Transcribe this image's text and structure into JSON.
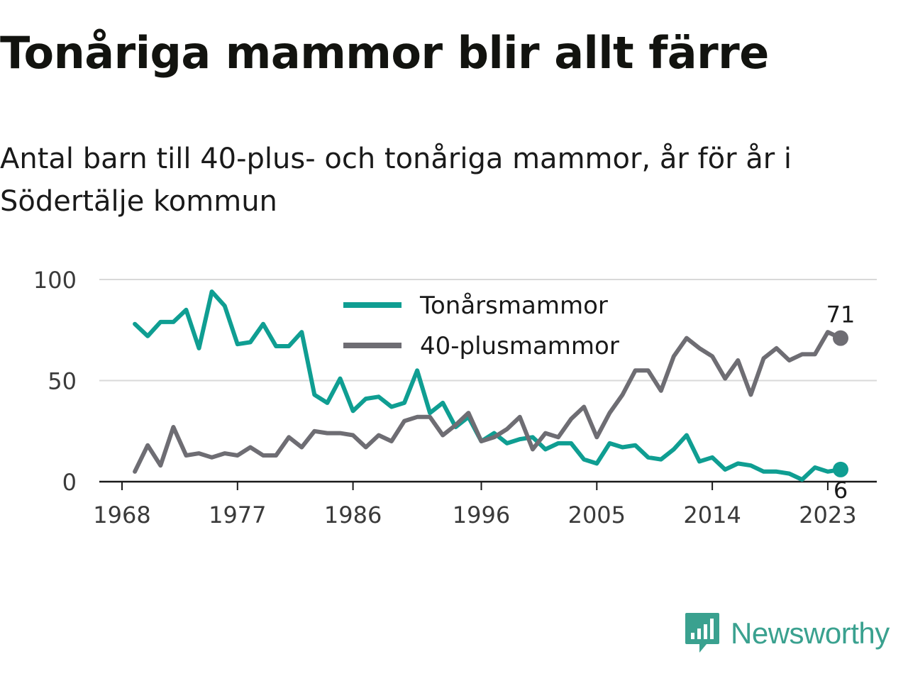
{
  "title": "Tonåriga mammor blir allt färre",
  "subtitle": "Antal barn till 40-plus- och tonåriga mammor, år för år i Södertälje kommun",
  "brand": {
    "name": "Newsworthy",
    "logo_icon": "bar-chart-speech-bubble-icon",
    "color": "#3aa18f"
  },
  "chart_data": {
    "type": "line",
    "x": [
      1969,
      1970,
      1971,
      1972,
      1973,
      1974,
      1975,
      1976,
      1977,
      1978,
      1979,
      1980,
      1981,
      1982,
      1983,
      1984,
      1985,
      1986,
      1987,
      1988,
      1989,
      1990,
      1991,
      1992,
      1993,
      1994,
      1995,
      1996,
      1997,
      1998,
      1999,
      2000,
      2001,
      2002,
      2003,
      2004,
      2005,
      2006,
      2007,
      2008,
      2009,
      2010,
      2011,
      2012,
      2013,
      2014,
      2015,
      2016,
      2017,
      2018,
      2019,
      2020,
      2021,
      2022,
      2023,
      2024
    ],
    "series": [
      {
        "name": "Tonårsmammor",
        "color": "#0f9e92",
        "values": [
          78,
          72,
          79,
          79,
          85,
          66,
          94,
          87,
          68,
          69,
          78,
          67,
          67,
          74,
          43,
          39,
          51,
          35,
          41,
          42,
          37,
          39,
          55,
          34,
          39,
          27,
          32,
          20,
          24,
          19,
          21,
          22,
          16,
          19,
          19,
          11,
          9,
          19,
          17,
          18,
          12,
          11,
          16,
          23,
          10,
          12,
          6,
          9,
          8,
          5,
          5,
          4,
          1,
          7,
          5,
          6
        ],
        "end_label": "6"
      },
      {
        "name": "40-plusmammor",
        "color": "#6e6d73",
        "values": [
          5,
          18,
          8,
          27,
          13,
          14,
          12,
          14,
          13,
          17,
          13,
          13,
          22,
          17,
          25,
          24,
          24,
          23,
          17,
          23,
          20,
          30,
          32,
          32,
          23,
          28,
          34,
          20,
          22,
          26,
          32,
          16,
          24,
          22,
          31,
          37,
          22,
          34,
          43,
          55,
          55,
          45,
          62,
          71,
          66,
          62,
          51,
          60,
          43,
          61,
          66,
          60,
          63,
          63,
          74,
          71
        ],
        "end_label": "71"
      }
    ],
    "x_ticks": [
      "1968",
      "1977",
      "1986",
      "1996",
      "2005",
      "2014",
      "2023"
    ],
    "y_ticks": [
      "0",
      "50",
      "100"
    ],
    "ylim": [
      0,
      100
    ],
    "xlim": [
      1968,
      2024
    ],
    "grid": true,
    "legend_position": "top-center"
  }
}
